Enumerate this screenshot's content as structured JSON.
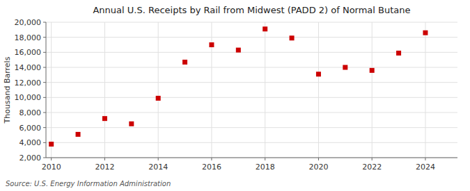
{
  "chart_data": {
    "type": "scatter",
    "title": "Annual U.S. Receipts by Rail from Midwest (PADD 2) of Normal Butane",
    "y_label": "Thousand Barrels",
    "source": "Source: U.S. Energy Information Administration",
    "x": [
      2010,
      2011,
      2012,
      2013,
      2014,
      2015,
      2016,
      2017,
      2018,
      2019,
      2020,
      2021,
      2022,
      2023,
      2024
    ],
    "values": [
      3800,
      5100,
      7200,
      6500,
      9900,
      14700,
      17000,
      16300,
      19100,
      17900,
      13100,
      14000,
      13600,
      15900,
      18600
    ],
    "color": "#cc0000",
    "marker": "square",
    "xlim": [
      2009.8,
      2025.2
    ],
    "xticks": [
      2010,
      2012,
      2014,
      2016,
      2018,
      2020,
      2022,
      2024
    ],
    "ylim": [
      2000,
      20000
    ],
    "yticks": [
      {
        "value": 2000,
        "label": "2,000"
      },
      {
        "value": 4000,
        "label": "4,000"
      },
      {
        "value": 6000,
        "label": "6,000"
      },
      {
        "value": 8000,
        "label": "8,000"
      },
      {
        "value": 10000,
        "label": "10,000"
      },
      {
        "value": 12000,
        "label": "12,000"
      },
      {
        "value": 14000,
        "label": "14,000"
      },
      {
        "value": 16000,
        "label": "16,000"
      },
      {
        "value": 18000,
        "label": "18,000"
      },
      {
        "value": 20000,
        "label": "20,000"
      }
    ],
    "grid": true
  }
}
